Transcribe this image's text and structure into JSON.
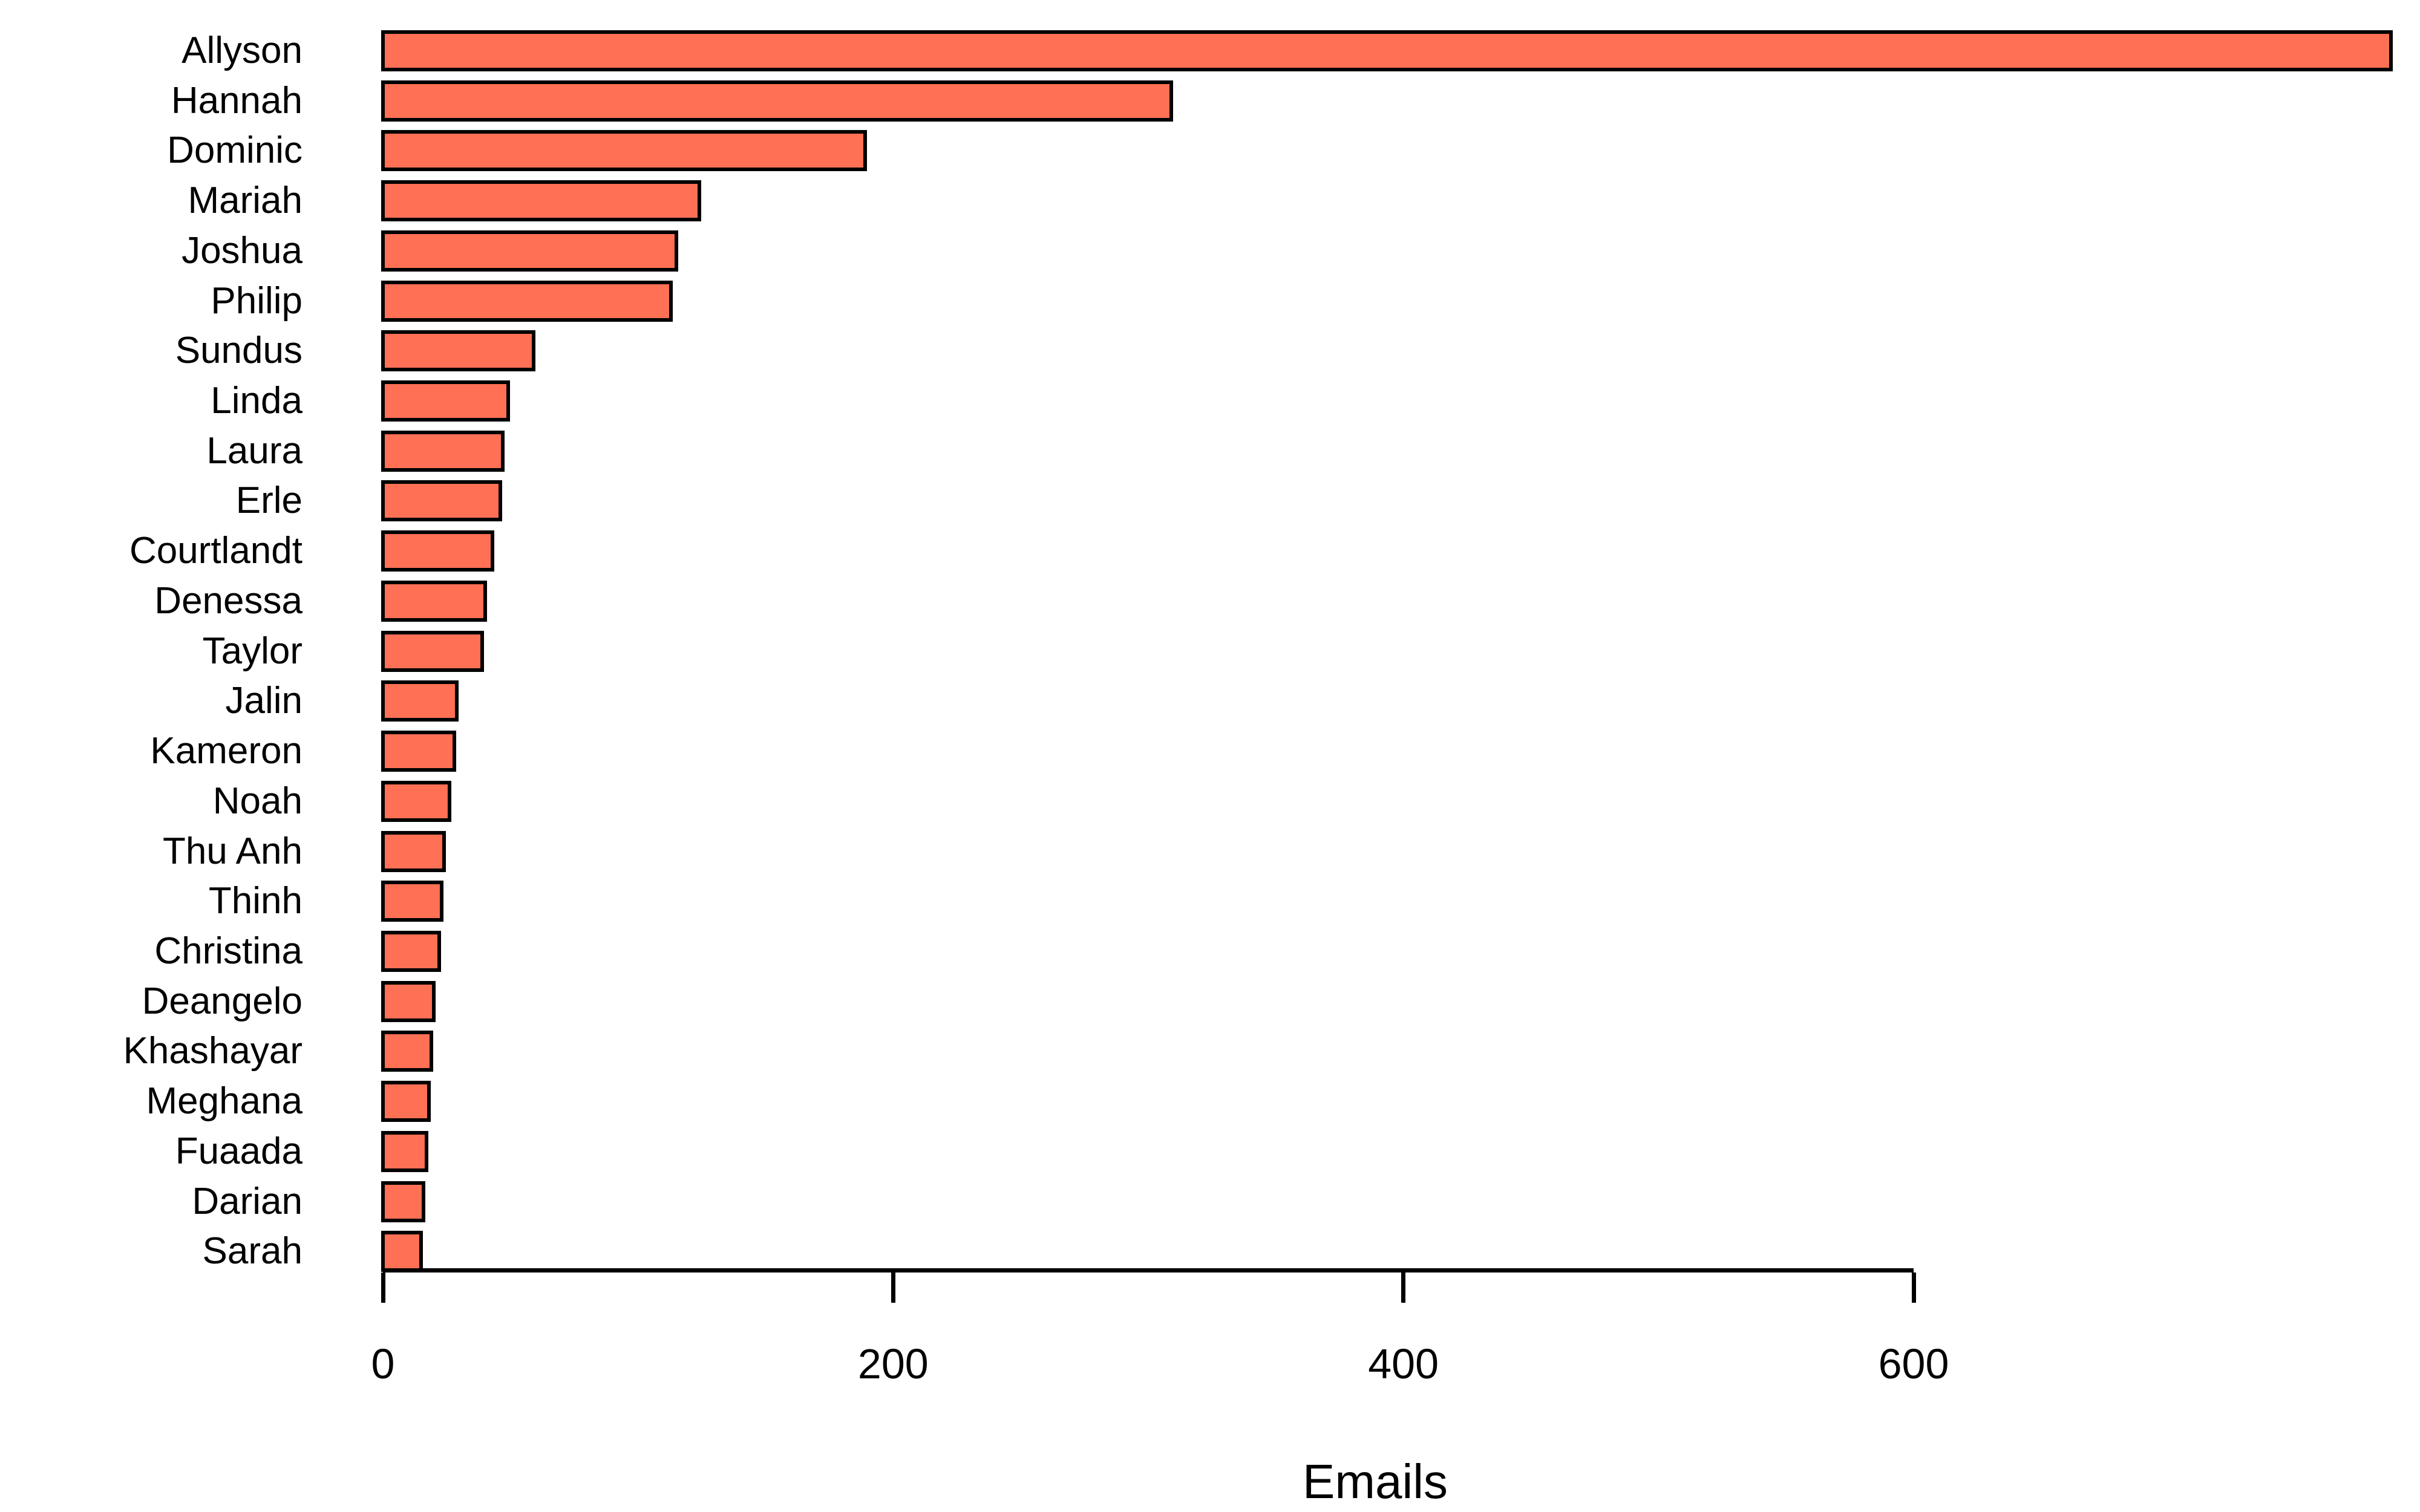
{
  "chart_data": {
    "type": "bar",
    "orientation": "horizontal",
    "title": "",
    "xlabel": "Emails",
    "ylabel": "",
    "categories": [
      "Allyson",
      "Hannah",
      "Dominic",
      "Mariah",
      "Joshua",
      "Philip",
      "Sundus",
      "Linda",
      "Laura",
      "Erle",
      "Courtlandt",
      "Denessa",
      "Taylor",
      "Jalin",
      "Kameron",
      "Noah",
      "Thu Anh",
      "Thinh",
      "Christina",
      "Deangelo",
      "Khashayar",
      "Meghana",
      "Fuaada",
      "Darian",
      "Sarah"
    ],
    "values": [
      787,
      309,
      189,
      124,
      115,
      113,
      59,
      49,
      47,
      46,
      43,
      40,
      39,
      29,
      28,
      26,
      24,
      23,
      22,
      20,
      19,
      18,
      17,
      16,
      15
    ],
    "x_ticks": [
      0,
      200,
      400,
      600
    ],
    "xlim": [
      0,
      800
    ],
    "grid": false,
    "legend": false,
    "bar_color": "#FF7055",
    "bar_border_color": "#000000",
    "axis_color": "#000000",
    "background": "#FFFFFF"
  }
}
